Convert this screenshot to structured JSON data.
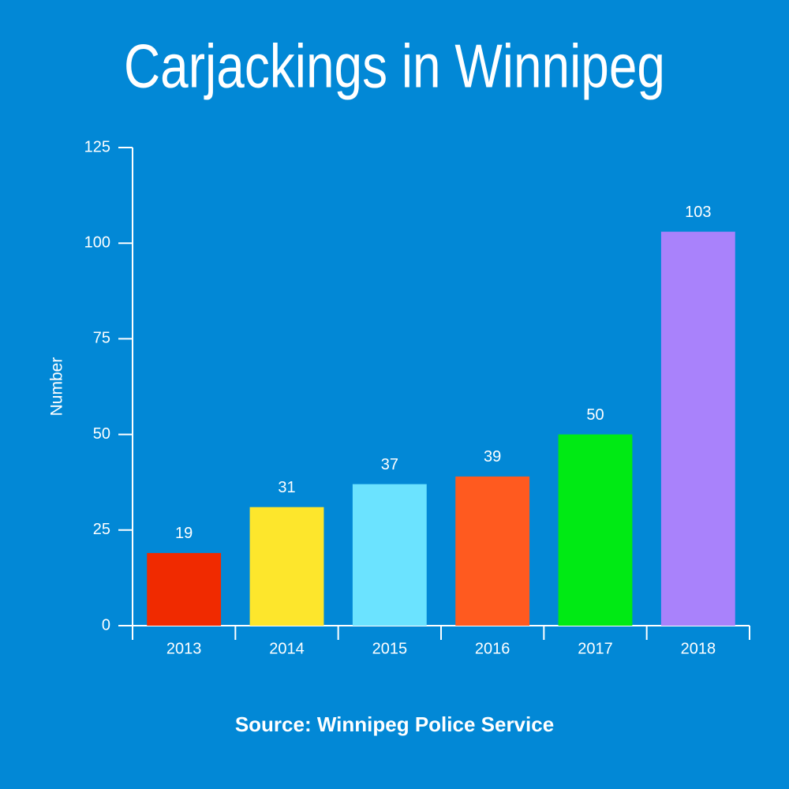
{
  "chart_data": {
    "type": "bar",
    "title": "Carjackings in Winnipeg",
    "source": "Source: Winnipeg Police Service",
    "y_label": "Number",
    "categories": [
      "2013",
      "2014",
      "2015",
      "2016",
      "2017",
      "2018"
    ],
    "values": [
      19,
      31,
      37,
      39,
      50,
      103
    ],
    "colors": [
      "#f02a00",
      "#fde62c",
      "#6be3ff",
      "#ff5a1f",
      "#00ea14",
      "#a982fb"
    ],
    "ylim": [
      0,
      125
    ],
    "yticks": [
      0,
      25,
      50,
      75,
      100,
      125
    ],
    "grid": false
  }
}
